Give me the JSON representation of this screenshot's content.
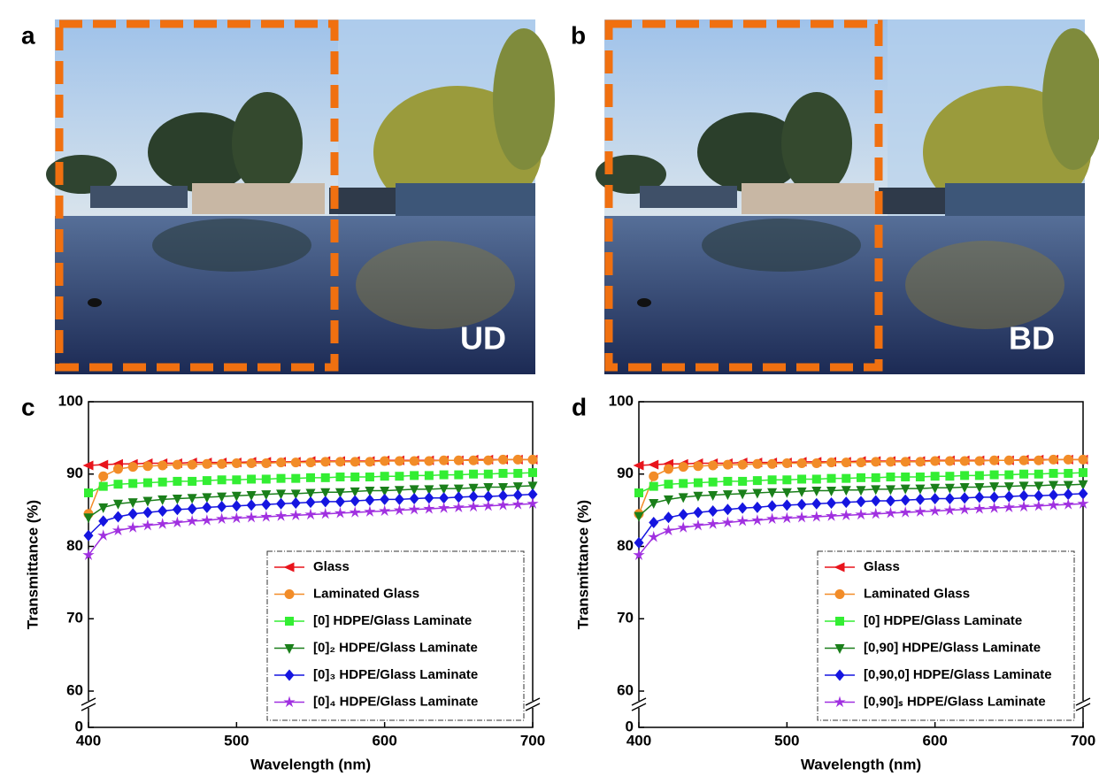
{
  "photos": [
    {
      "label": "a",
      "tag": "UD"
    },
    {
      "label": "b",
      "tag": "BD"
    }
  ],
  "chart_data": [
    {
      "type": "line",
      "panel_label": "c",
      "xlabel": "Wavelength (nm)",
      "ylabel": "Transmittance (%)",
      "x": [
        400,
        410,
        420,
        430,
        440,
        450,
        460,
        470,
        480,
        490,
        500,
        510,
        520,
        530,
        540,
        550,
        560,
        570,
        580,
        590,
        600,
        610,
        620,
        630,
        640,
        650,
        660,
        670,
        680,
        690,
        700
      ],
      "xlim": [
        400,
        700
      ],
      "xticks": [
        400,
        500,
        600,
        700
      ],
      "ylim": [
        0,
        100
      ],
      "yticks": [
        0,
        60,
        70,
        80,
        90,
        100
      ],
      "y_break": [
        0,
        60
      ],
      "legend": "lower right",
      "series": [
        {
          "name": "Glass",
          "color": "#e8141c",
          "marker": "triangle-left",
          "values": [
            91.2,
            91.3,
            91.4,
            91.4,
            91.5,
            91.5,
            91.5,
            91.6,
            91.6,
            91.6,
            91.6,
            91.7,
            91.7,
            91.7,
            91.7,
            91.8,
            91.8,
            91.8,
            91.8,
            91.8,
            91.9,
            91.9,
            91.9,
            91.9,
            91.9,
            91.9,
            92.0,
            92.0,
            92.0,
            92.0,
            92.0
          ]
        },
        {
          "name": "Laminated Glass",
          "color": "#f28c28",
          "marker": "circle",
          "values": [
            84.5,
            89.7,
            90.7,
            91.0,
            91.1,
            91.2,
            91.3,
            91.3,
            91.4,
            91.4,
            91.5,
            91.5,
            91.5,
            91.6,
            91.6,
            91.6,
            91.7,
            91.7,
            91.7,
            91.7,
            91.8,
            91.8,
            91.8,
            91.8,
            91.9,
            91.9,
            91.9,
            91.9,
            92.0,
            92.0,
            92.0
          ]
        },
        {
          "name": "[0] HDPE/Glass Laminate",
          "color": "#33ee33",
          "marker": "square",
          "values": [
            87.4,
            88.3,
            88.6,
            88.7,
            88.8,
            88.9,
            89.0,
            89.0,
            89.1,
            89.2,
            89.2,
            89.3,
            89.3,
            89.4,
            89.4,
            89.5,
            89.5,
            89.6,
            89.6,
            89.6,
            89.7,
            89.7,
            89.8,
            89.8,
            89.9,
            89.9,
            90.0,
            90.0,
            90.1,
            90.1,
            90.2
          ]
        },
        {
          "name": "[0]₂ HDPE/Glass Laminate",
          "color": "#1a7f1a",
          "marker": "triangle-down",
          "values": [
            84.0,
            85.4,
            85.9,
            86.1,
            86.3,
            86.5,
            86.6,
            86.7,
            86.8,
            86.9,
            87.0,
            87.1,
            87.2,
            87.3,
            87.3,
            87.4,
            87.5,
            87.5,
            87.6,
            87.7,
            87.7,
            87.8,
            87.9,
            87.9,
            88.0,
            88.0,
            88.1,
            88.2,
            88.2,
            88.3,
            88.4
          ]
        },
        {
          "name": "[0]₃ HDPE/Glass Laminate",
          "color": "#1515e0",
          "marker": "diamond",
          "values": [
            81.5,
            83.5,
            84.1,
            84.5,
            84.7,
            84.9,
            85.1,
            85.2,
            85.4,
            85.5,
            85.6,
            85.7,
            85.8,
            85.9,
            86.0,
            86.1,
            86.2,
            86.2,
            86.3,
            86.4,
            86.5,
            86.5,
            86.6,
            86.7,
            86.7,
            86.8,
            86.9,
            86.9,
            87.0,
            87.1,
            87.2
          ]
        },
        {
          "name": "[0]₄ HDPE/Glass Laminate",
          "color": "#a030e0",
          "marker": "star",
          "values": [
            78.8,
            81.5,
            82.2,
            82.6,
            82.9,
            83.1,
            83.3,
            83.5,
            83.6,
            83.8,
            83.9,
            84.0,
            84.1,
            84.2,
            84.3,
            84.4,
            84.5,
            84.6,
            84.7,
            84.8,
            84.9,
            85.0,
            85.1,
            85.2,
            85.3,
            85.4,
            85.5,
            85.6,
            85.7,
            85.8,
            85.9
          ]
        }
      ]
    },
    {
      "type": "line",
      "panel_label": "d",
      "xlabel": "Wavelength (nm)",
      "ylabel": "Transmittance (%)",
      "x": [
        400,
        410,
        420,
        430,
        440,
        450,
        460,
        470,
        480,
        490,
        500,
        510,
        520,
        530,
        540,
        550,
        560,
        570,
        580,
        590,
        600,
        610,
        620,
        630,
        640,
        650,
        660,
        670,
        680,
        690,
        700
      ],
      "xlim": [
        400,
        700
      ],
      "xticks": [
        400,
        500,
        600,
        700
      ],
      "ylim": [
        0,
        100
      ],
      "yticks": [
        0,
        60,
        70,
        80,
        90,
        100
      ],
      "y_break": [
        0,
        60
      ],
      "legend": "lower right",
      "series": [
        {
          "name": "Glass",
          "color": "#e8141c",
          "marker": "triangle-left",
          "values": [
            91.2,
            91.3,
            91.4,
            91.4,
            91.5,
            91.5,
            91.5,
            91.6,
            91.6,
            91.6,
            91.6,
            91.7,
            91.7,
            91.7,
            91.7,
            91.8,
            91.8,
            91.8,
            91.8,
            91.8,
            91.9,
            91.9,
            91.9,
            91.9,
            91.9,
            91.9,
            92.0,
            92.0,
            92.0,
            92.0,
            92.0
          ]
        },
        {
          "name": "Laminated Glass",
          "color": "#f28c28",
          "marker": "circle",
          "values": [
            84.5,
            89.7,
            90.7,
            91.0,
            91.1,
            91.2,
            91.3,
            91.3,
            91.4,
            91.4,
            91.5,
            91.5,
            91.5,
            91.6,
            91.6,
            91.6,
            91.7,
            91.7,
            91.7,
            91.7,
            91.8,
            91.8,
            91.8,
            91.8,
            91.9,
            91.9,
            91.9,
            91.9,
            92.0,
            92.0,
            92.0
          ]
        },
        {
          "name": "[0] HDPE/Glass Laminate",
          "color": "#33ee33",
          "marker": "square",
          "values": [
            87.4,
            88.3,
            88.6,
            88.7,
            88.8,
            88.9,
            89.0,
            89.0,
            89.1,
            89.2,
            89.2,
            89.3,
            89.3,
            89.4,
            89.4,
            89.5,
            89.5,
            89.6,
            89.6,
            89.6,
            89.7,
            89.7,
            89.8,
            89.8,
            89.9,
            89.9,
            90.0,
            90.0,
            90.1,
            90.1,
            90.2
          ]
        },
        {
          "name": "[0,90] HDPE/Glass Laminate",
          "color": "#1a7f1a",
          "marker": "triangle-down",
          "values": [
            84.2,
            86.0,
            86.5,
            86.8,
            87.0,
            87.1,
            87.2,
            87.3,
            87.4,
            87.5,
            87.5,
            87.6,
            87.7,
            87.7,
            87.8,
            87.8,
            87.9,
            87.9,
            88.0,
            88.0,
            88.1,
            88.1,
            88.2,
            88.2,
            88.3,
            88.3,
            88.4,
            88.4,
            88.5,
            88.5,
            88.6
          ]
        },
        {
          "name": "[0,90,0] HDPE/Glass Laminate",
          "color": "#1515e0",
          "marker": "diamond",
          "values": [
            80.5,
            83.3,
            84.0,
            84.4,
            84.7,
            84.9,
            85.1,
            85.3,
            85.4,
            85.6,
            85.7,
            85.8,
            85.9,
            86.0,
            86.1,
            86.2,
            86.3,
            86.3,
            86.4,
            86.5,
            86.6,
            86.6,
            86.7,
            86.8,
            86.8,
            86.9,
            87.0,
            87.0,
            87.1,
            87.2,
            87.3
          ]
        },
        {
          "name": "[0,90]ₛ HDPE/Glass Laminate",
          "color": "#a030e0",
          "marker": "star",
          "values": [
            78.8,
            81.3,
            82.2,
            82.6,
            82.9,
            83.1,
            83.3,
            83.5,
            83.6,
            83.8,
            83.9,
            84.0,
            84.1,
            84.2,
            84.3,
            84.4,
            84.5,
            84.6,
            84.7,
            84.8,
            84.9,
            85.0,
            85.1,
            85.2,
            85.3,
            85.4,
            85.5,
            85.6,
            85.7,
            85.8,
            85.9
          ]
        }
      ]
    }
  ]
}
